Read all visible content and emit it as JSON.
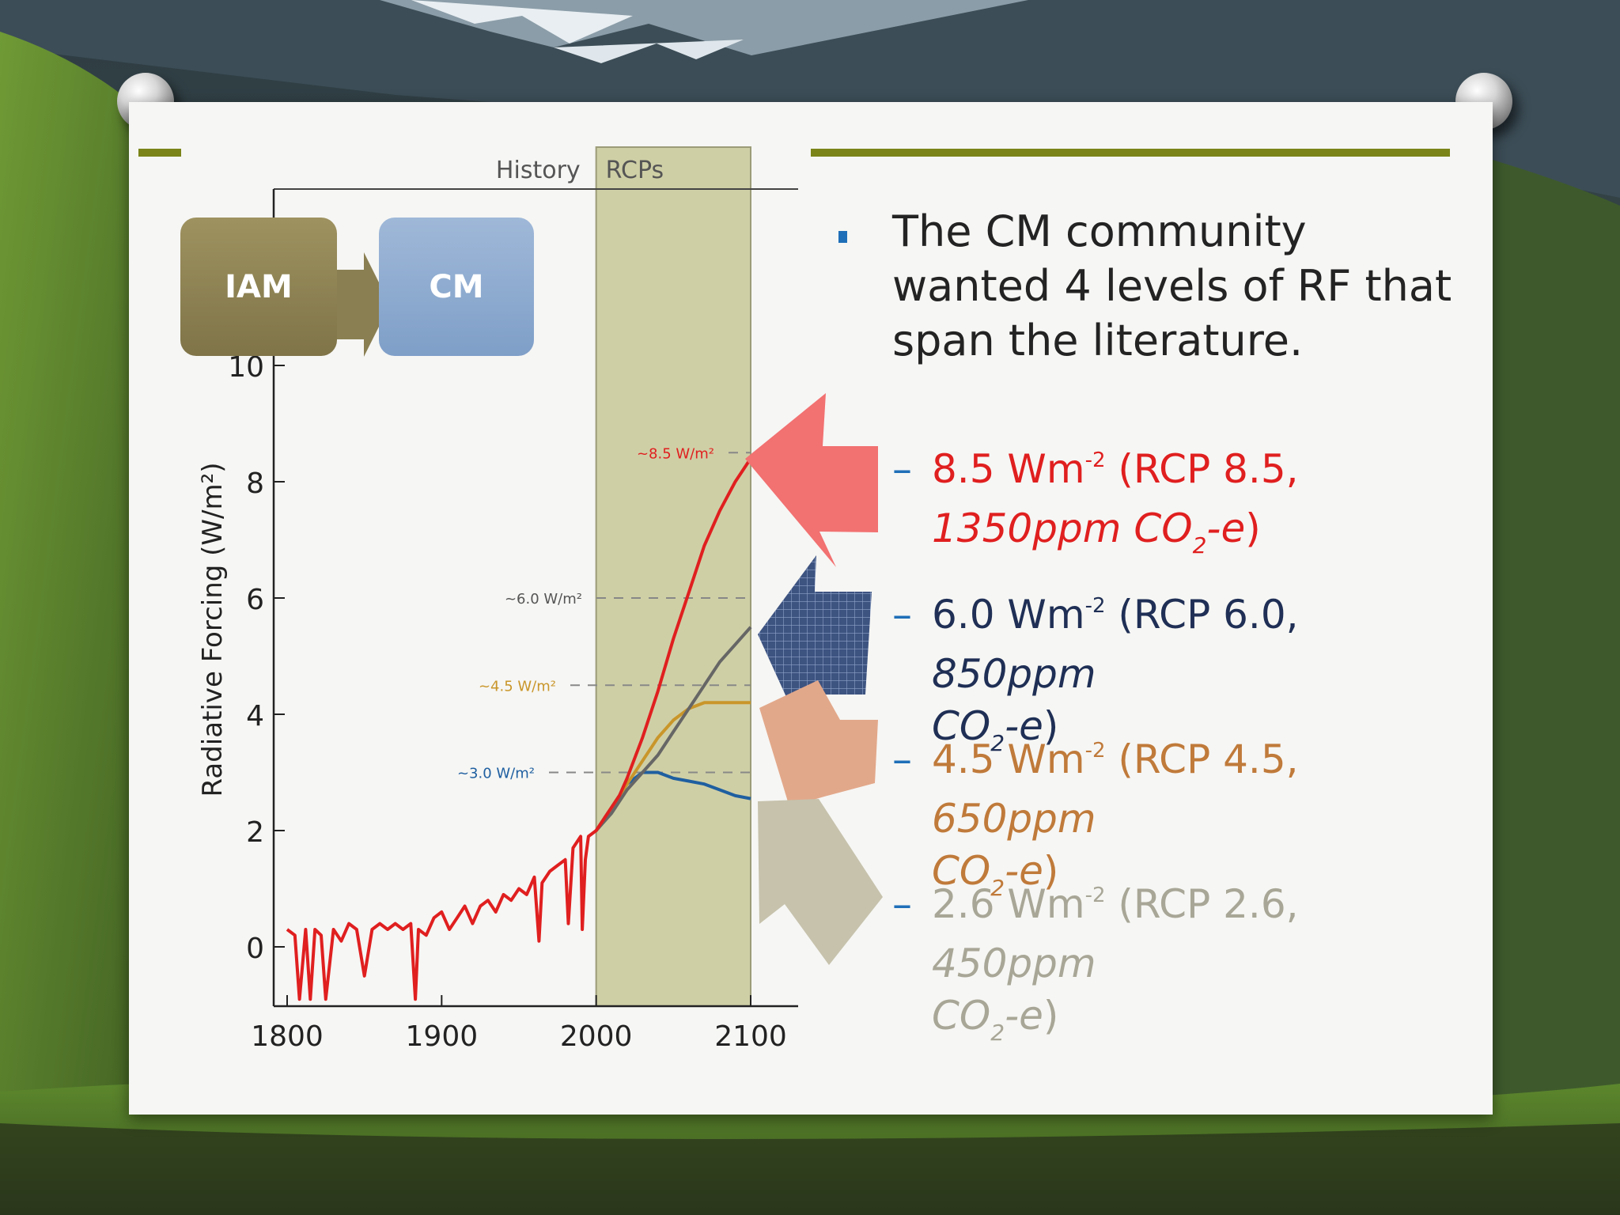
{
  "colors": {
    "rcp85": "#e01f1f",
    "rcp60": "#1f2f55",
    "rcp45": "#c07a3a",
    "rcp26": "#a8a696",
    "accent_rule": "#7a8418",
    "bullet": "#1f6fb8",
    "rcp_band": "#cfcfa6"
  },
  "text": {
    "bullet": "The CM community wanted 4 levels of RF that span the literature.",
    "items": [
      {
        "dash": "–",
        "plain": "8.5 Wm",
        "sup": "-2",
        "mid": " (RCP 8.5, ",
        "em_line1": "",
        "em_line2": "1350ppm CO",
        "sub": "2",
        "em_tail": "-e",
        ")": ")"
      },
      {
        "dash": "–",
        "plain": "6.0 Wm",
        "sup": "-2",
        "mid": " (RCP 6.0, ",
        "em_line1": "850ppm",
        "em_line2": "CO",
        "sub": "2",
        "em_tail": "-e",
        ")": ")"
      },
      {
        "dash": "–",
        "plain": "4.5 Wm",
        "sup": "-2",
        "mid": " (RCP 4.5, ",
        "em_line1": "650ppm",
        "em_line2": "CO",
        "sub": "2",
        "em_tail": "-e",
        ")": ")"
      },
      {
        "dash": "–",
        "plain": "2.6 Wm",
        "sup": "-2",
        "mid": " (RCP 2.6, ",
        "em_line1": "450ppm",
        "em_line2": "CO",
        "sub": "2",
        "em_tail": "-e",
        ")": ")"
      }
    ]
  },
  "chart_data": {
    "type": "line",
    "ylabel": "Radiative Forcing (W/m²)",
    "xlabel": "",
    "xlim": [
      1800,
      2100
    ],
    "ylim": [
      -1,
      10
    ],
    "xticks": [
      "1800",
      "1900",
      "2000",
      "2100"
    ],
    "yticks": [
      "0",
      "2",
      "4",
      "6",
      "8",
      "10"
    ],
    "period_labels": {
      "history": "History",
      "rcps": "RCPs"
    },
    "rcp_band": [
      2000,
      2100
    ],
    "flow": {
      "from": "IAM",
      "to": "CM"
    },
    "target_labels": [
      {
        "text": "~8.5 W/m²",
        "value": 8.5,
        "color": "#e01f1f"
      },
      {
        "text": "~6.0 W/m²",
        "value": 6.0,
        "color": "#555555"
      },
      {
        "text": "~4.5 W/m²",
        "value": 4.5,
        "color": "#c9962a"
      },
      {
        "text": "~3.0 W/m²",
        "value": 3.0,
        "color": "#1f5fa0"
      }
    ],
    "series": [
      {
        "color": "#e01f1f",
        "x": [
          1800,
          1805,
          1808,
          1812,
          1815,
          1818,
          1822,
          1825,
          1830,
          1835,
          1840,
          1845,
          1850,
          1855,
          1860,
          1865,
          1870,
          1875,
          1880,
          1883,
          1885,
          1890,
          1895,
          1900,
          1905,
          1910,
          1915,
          1920,
          1925,
          1930,
          1935,
          1940,
          1945,
          1950,
          1955,
          1960,
          1963,
          1965,
          1970,
          1975,
          1980,
          1982,
          1985,
          1990,
          1991,
          1993,
          1995,
          2000,
          2005,
          2010,
          2015,
          2020,
          2030,
          2040,
          2050,
          2060,
          2070,
          2080,
          2090,
          2100
        ],
        "y": [
          0.3,
          0.2,
          -0.9,
          0.3,
          -0.9,
          0.3,
          0.2,
          -0.9,
          0.3,
          0.1,
          0.4,
          0.3,
          -0.5,
          0.3,
          0.4,
          0.3,
          0.4,
          0.3,
          0.4,
          -0.9,
          0.3,
          0.2,
          0.5,
          0.6,
          0.3,
          0.5,
          0.7,
          0.4,
          0.7,
          0.8,
          0.6,
          0.9,
          0.8,
          1.0,
          0.9,
          1.2,
          0.1,
          1.1,
          1.3,
          1.4,
          1.5,
          0.4,
          1.7,
          1.9,
          0.3,
          1.5,
          1.9,
          2.0,
          2.2,
          2.4,
          2.6,
          2.9,
          3.6,
          4.4,
          5.3,
          6.1,
          6.9,
          7.5,
          8.0,
          8.4
        ]
      },
      {
        "color": "#666666",
        "x": [
          2000,
          2010,
          2020,
          2030,
          2040,
          2050,
          2060,
          2070,
          2080,
          2090,
          2100
        ],
        "y": [
          2.0,
          2.3,
          2.7,
          3.0,
          3.3,
          3.7,
          4.1,
          4.5,
          4.9,
          5.2,
          5.5
        ]
      },
      {
        "color": "#c9962a",
        "x": [
          2000,
          2010,
          2020,
          2030,
          2040,
          2050,
          2060,
          2070,
          2080,
          2090,
          2100
        ],
        "y": [
          2.0,
          2.4,
          2.8,
          3.2,
          3.6,
          3.9,
          4.1,
          4.2,
          4.2,
          4.2,
          4.2
        ]
      },
      {
        "color": "#1f5fa0",
        "x": [
          2000,
          2010,
          2020,
          2030,
          2040,
          2050,
          2060,
          2070,
          2080,
          2090,
          2100
        ],
        "y": [
          2.0,
          2.4,
          2.8,
          3.0,
          3.0,
          2.9,
          2.85,
          2.8,
          2.7,
          2.6,
          2.55
        ]
      }
    ]
  }
}
